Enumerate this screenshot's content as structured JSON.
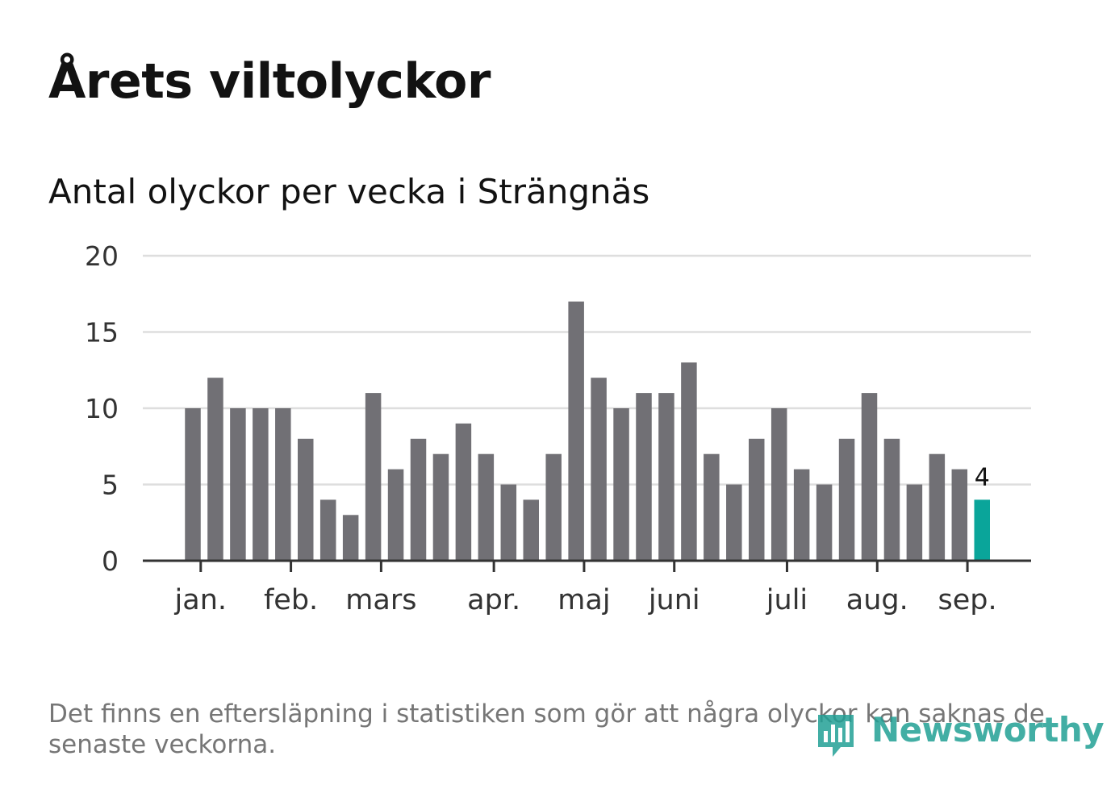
{
  "header": {
    "title": "Årets viltolyckor",
    "subtitle": "Antal olyckor per vecka i Strängnäs"
  },
  "footer": {
    "note": "Det finns en eftersläpning i statistiken som gör att några olyckor kan saknas de senaste veckorna.",
    "brand": "Newsworthy"
  },
  "colors": {
    "bar": "#717075",
    "highlight": "#0aa59a",
    "grid": "#dedede",
    "axis": "#333333"
  },
  "chart_data": {
    "type": "bar",
    "title": "Årets viltolyckor",
    "subtitle": "Antal olyckor per vecka i Strängnäs",
    "xlabel": "",
    "ylabel": "",
    "ylim": [
      0,
      20
    ],
    "yticks": [
      0,
      5,
      10,
      15,
      20
    ],
    "grid": true,
    "week_start": 1,
    "values": [
      10,
      12,
      10,
      10,
      10,
      8,
      4,
      3,
      11,
      6,
      8,
      7,
      9,
      7,
      5,
      4,
      7,
      17,
      12,
      10,
      11,
      11,
      13,
      7,
      5,
      8,
      10,
      6,
      5,
      8,
      11,
      8,
      5,
      7,
      6,
      4
    ],
    "highlight_index": 35,
    "highlight_label": "4",
    "month_ticks": [
      {
        "label": "jan.",
        "week": 1.35
      },
      {
        "label": "feb.",
        "week": 5.35
      },
      {
        "label": "mars",
        "week": 9.35
      },
      {
        "label": "apr.",
        "week": 14.35
      },
      {
        "label": "maj",
        "week": 18.35
      },
      {
        "label": "juni",
        "week": 22.35
      },
      {
        "label": "juli",
        "week": 27.35
      },
      {
        "label": "aug.",
        "week": 31.35
      },
      {
        "label": "sep.",
        "week": 35.35
      }
    ]
  }
}
